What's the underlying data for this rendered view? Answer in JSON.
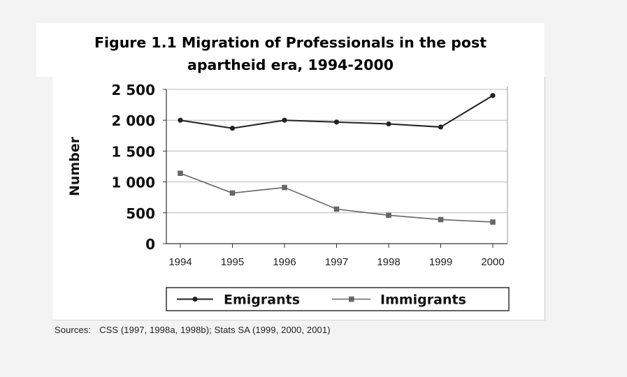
{
  "figure": {
    "title_line1": "Figure 1.1 Migration of Professionals in the post",
    "title_line2": "apartheid era, 1994-2000"
  },
  "chart_data": {
    "type": "line",
    "x": [
      "1994",
      "1995",
      "1996",
      "1997",
      "1998",
      "1999",
      "2000"
    ],
    "series": [
      {
        "name": "Emigrants",
        "values": [
          2000,
          1870,
          2000,
          1970,
          1940,
          1890,
          2400
        ],
        "marker": "circle",
        "color": "#222222"
      },
      {
        "name": "Immigrants",
        "values": [
          1140,
          820,
          910,
          560,
          460,
          390,
          350
        ],
        "marker": "square",
        "color": "#666666"
      }
    ],
    "ylabel": "Number",
    "xlabel": "",
    "ylim": [
      0,
      2500
    ],
    "yticks": [
      0,
      500,
      1000,
      1500,
      2000,
      2500
    ],
    "ytick_labels": [
      "0",
      "500",
      "1 000",
      "1 500",
      "2 000",
      "2 500"
    ],
    "grid": true,
    "legend_position": "bottom"
  },
  "source": {
    "label": "Sources:",
    "text": "CSS (1997, 1998a, 1998b); Stats SA (1999, 2000, 2001)"
  }
}
